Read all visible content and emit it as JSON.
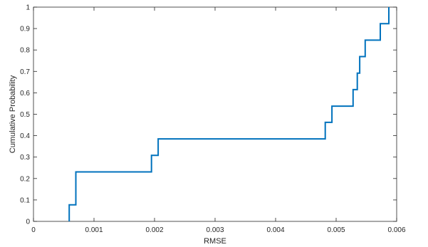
{
  "chart_data": {
    "type": "line",
    "line_shape": "step",
    "xlabel": "RMSE",
    "ylabel": "Cumulative Probability",
    "xlim": [
      0,
      0.006
    ],
    "ylim": [
      0,
      1
    ],
    "xticks": [
      0,
      0.001,
      0.002,
      0.003,
      0.004,
      0.005,
      0.006
    ],
    "xtick_labels": [
      "0",
      "0.001",
      "0.002",
      "0.003",
      "0.004",
      "0.005",
      "0.006"
    ],
    "yticks": [
      0,
      0.1,
      0.2,
      0.3,
      0.4,
      0.5,
      0.6,
      0.7,
      0.8,
      0.9,
      1
    ],
    "ytick_labels": [
      "0",
      "0.1",
      "0.2",
      "0.3",
      "0.4",
      "0.5",
      "0.6",
      "0.7",
      "0.8",
      "0.9",
      "1"
    ],
    "grid": false,
    "box": true,
    "series": [
      {
        "color": "#0072BD",
        "x": [
          0.00059,
          0.00059,
          0.0007,
          0.0007,
          0.00195,
          0.00195,
          0.00206,
          0.00206,
          0.00482,
          0.00482,
          0.00493,
          0.00493,
          0.00528,
          0.00528,
          0.00535,
          0.00535,
          0.00539,
          0.00539,
          0.00548,
          0.00548,
          0.00573,
          0.00573,
          0.00587,
          0.00587
        ],
        "y": [
          0,
          0.077,
          0.077,
          0.231,
          0.231,
          0.308,
          0.308,
          0.385,
          0.385,
          0.462,
          0.462,
          0.538,
          0.538,
          0.615,
          0.615,
          0.692,
          0.692,
          0.769,
          0.769,
          0.846,
          0.846,
          0.923,
          0.923,
          1.0
        ]
      }
    ]
  }
}
